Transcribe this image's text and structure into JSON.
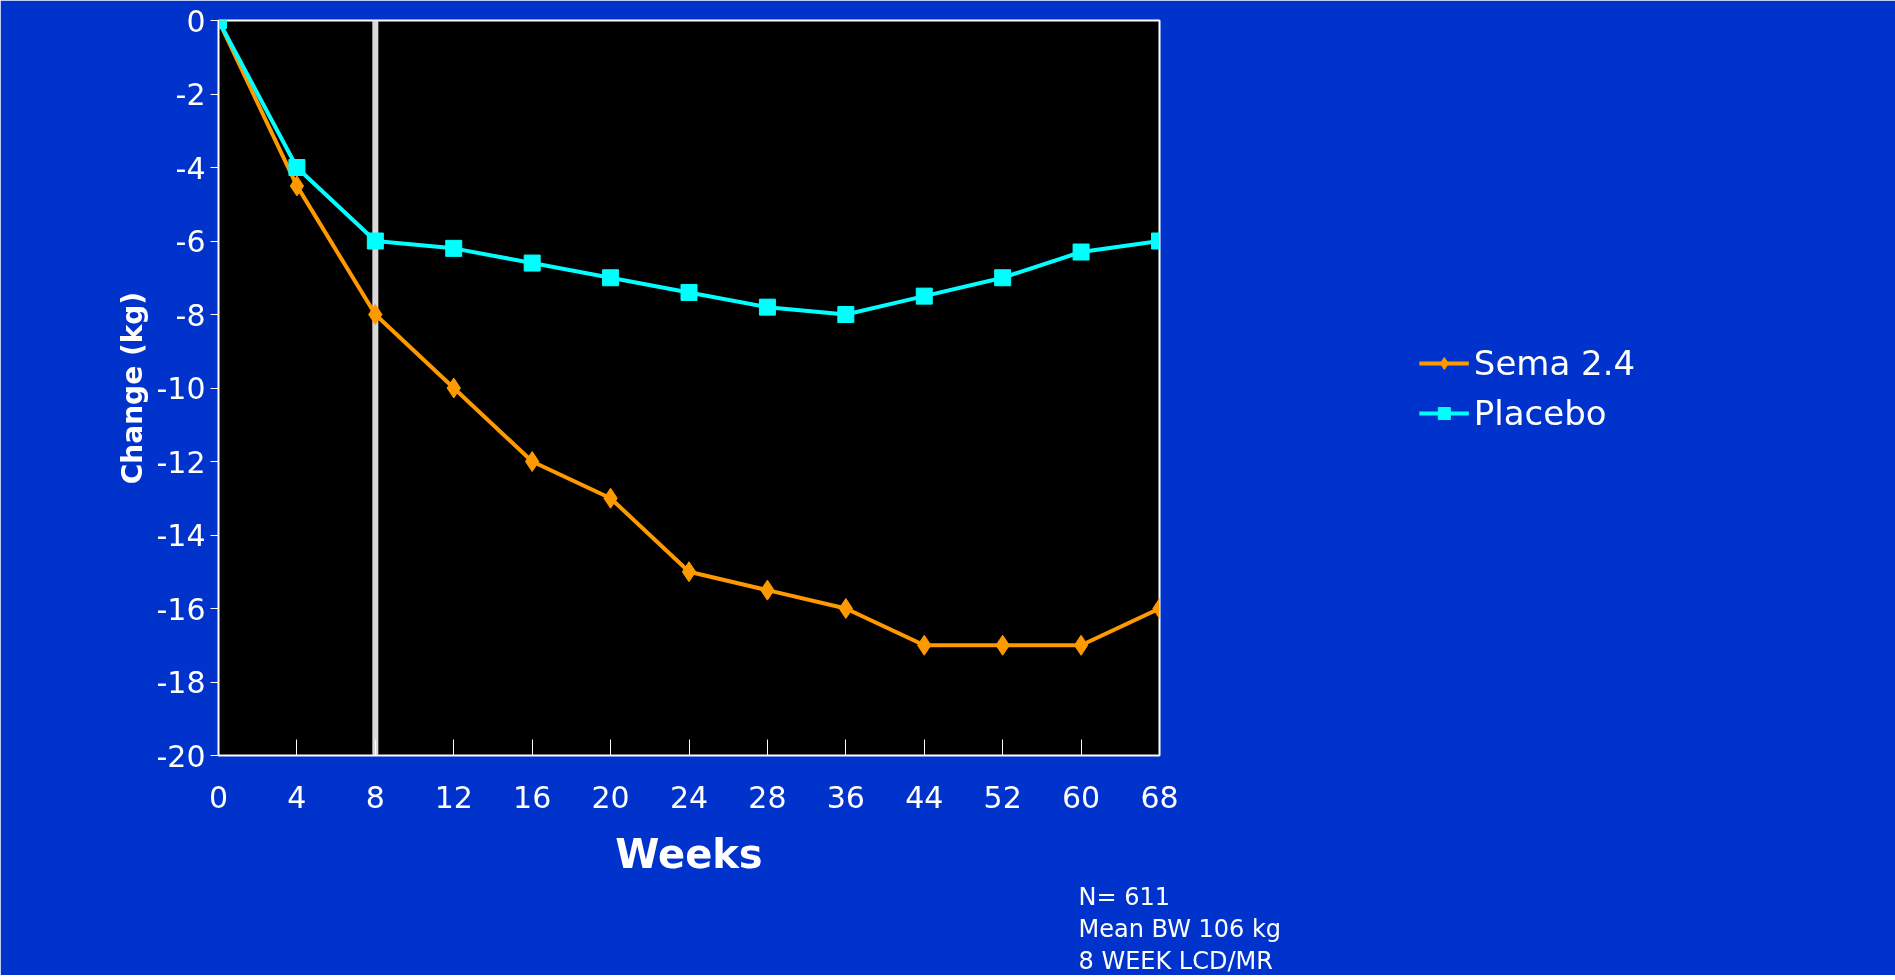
{
  "chart_data": {
    "type": "line",
    "xlabel": "Weeks",
    "ylabel": "Change (kg)",
    "categories": [
      "0",
      "4",
      "8",
      "12",
      "16",
      "20",
      "24",
      "28",
      "36",
      "44",
      "52",
      "60",
      "68"
    ],
    "series": [
      {
        "name": "Sema 2.4",
        "color": "#ff9900",
        "marker": "diamond",
        "values": [
          0,
          -4.5,
          -8,
          -10,
          -12,
          -13,
          -15,
          -15.5,
          -16,
          -17,
          -17,
          -17,
          -16
        ]
      },
      {
        "name": "Placebo",
        "color": "#00ffff",
        "marker": "square",
        "values": [
          0,
          -4,
          -6,
          -6.2,
          -6.6,
          -7,
          -7.4,
          -7.8,
          -8,
          -7.5,
          -7,
          -6.3,
          -6
        ]
      }
    ],
    "ylim": [
      -20,
      0
    ],
    "yticks": [
      -20,
      -18,
      -16,
      -14,
      -12,
      -10,
      -8,
      -6,
      -4,
      -2,
      0
    ],
    "ref_lines": [
      {
        "axis": "x",
        "value": "8",
        "color": "#d9d9d9"
      }
    ],
    "annotations": [
      "N= 611",
      "Mean BW 106 kg",
      "8 WEEK LCD/MR"
    ],
    "grid": false,
    "legend": "right",
    "line_style": "solid"
  }
}
